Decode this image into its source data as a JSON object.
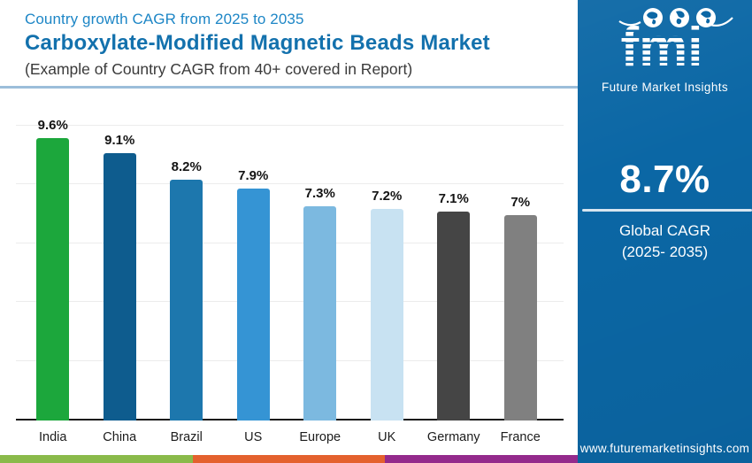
{
  "header": {
    "eyebrow": "Country growth CAGR from 2025 to 2035",
    "title": "Carboxylate-Modified Magnetic Beads Market",
    "subtitle": "(Example of Country CAGR from 40+ covered in Report)"
  },
  "chart_data": {
    "type": "bar",
    "categories": [
      "India",
      "China",
      "Brazil",
      "US",
      "Europe",
      "UK",
      "Germany",
      "France"
    ],
    "values": [
      9.6,
      9.1,
      8.2,
      7.9,
      7.3,
      7.2,
      7.1,
      7.0
    ],
    "value_labels": [
      "9.6%",
      "9.1%",
      "8.2%",
      "7.9%",
      "7.3%",
      "7.2%",
      "7.1%",
      "7%"
    ],
    "bar_colors": [
      "#1ca73c",
      "#0e5c8e",
      "#1d77ad",
      "#3594d4",
      "#7cb9e0",
      "#c8e2f2",
      "#454545",
      "#808080"
    ],
    "title": "Country growth CAGR from 2025 to 2035",
    "xlabel": "",
    "ylabel": "",
    "ylim": [
      0,
      10
    ],
    "gridline_step": 2,
    "grid": true,
    "legend": false
  },
  "sidebar": {
    "logo": {
      "text": "fmi",
      "tagline": "Future Market Insights",
      "globe_icons": [
        "americas-globe-icon",
        "europe-africa-globe-icon",
        "asia-pacific-globe-icon"
      ]
    },
    "stat_value": "8.7%",
    "stat_label_line1": "Global CAGR",
    "stat_label_line2": "(2025- 2035)",
    "website": "www.futuremarketinsights.com",
    "background_color": "#0b67a5"
  },
  "footer_stripe_colors": [
    "#8aba4a",
    "#e4612e",
    "#942a8c"
  ]
}
